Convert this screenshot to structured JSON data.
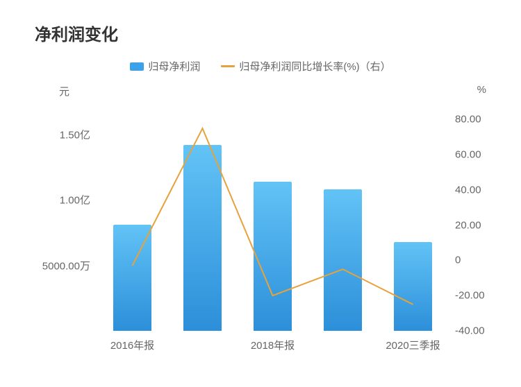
{
  "chart": {
    "title": "净利润变化",
    "legend": {
      "bar": {
        "label": "归母净利润",
        "color": "#3ba1e8"
      },
      "line": {
        "label": "归母净利润同比增长率(%)（右）",
        "color": "#e6a23c"
      }
    },
    "left_axis": {
      "unit": "元",
      "min": 0,
      "max": 17500,
      "ticks": [
        {
          "value": 15000,
          "label": "1.50亿"
        },
        {
          "value": 10000,
          "label": "1.00亿"
        },
        {
          "value": 5000,
          "label": "5000.00万"
        }
      ]
    },
    "right_axis": {
      "unit": "%",
      "min": -40,
      "max": 90,
      "ticks": [
        {
          "value": 80,
          "label": "80.00"
        },
        {
          "value": 60,
          "label": "60.00"
        },
        {
          "value": 40,
          "label": "40.00"
        },
        {
          "value": 20,
          "label": "20.00"
        },
        {
          "value": 0,
          "label": "0"
        },
        {
          "value": -20,
          "label": "-20.00"
        },
        {
          "value": -40,
          "label": "-40.00"
        }
      ]
    },
    "categories": [
      "2016年报",
      "",
      "2018年报",
      "",
      "2020三季报"
    ],
    "bars": {
      "values": [
        8100,
        14200,
        11400,
        10800,
        6800
      ],
      "gradient_top": "#62c3f6",
      "gradient_bottom": "#2c8fd9"
    },
    "line": {
      "values": [
        -3,
        75,
        -20,
        -5,
        -25
      ],
      "color": "#e6a23c",
      "width": 2
    },
    "background_color": "#ffffff",
    "title_fontsize": 24,
    "label_fontsize": 15,
    "text_color": "#666666",
    "title_color": "#333333"
  }
}
